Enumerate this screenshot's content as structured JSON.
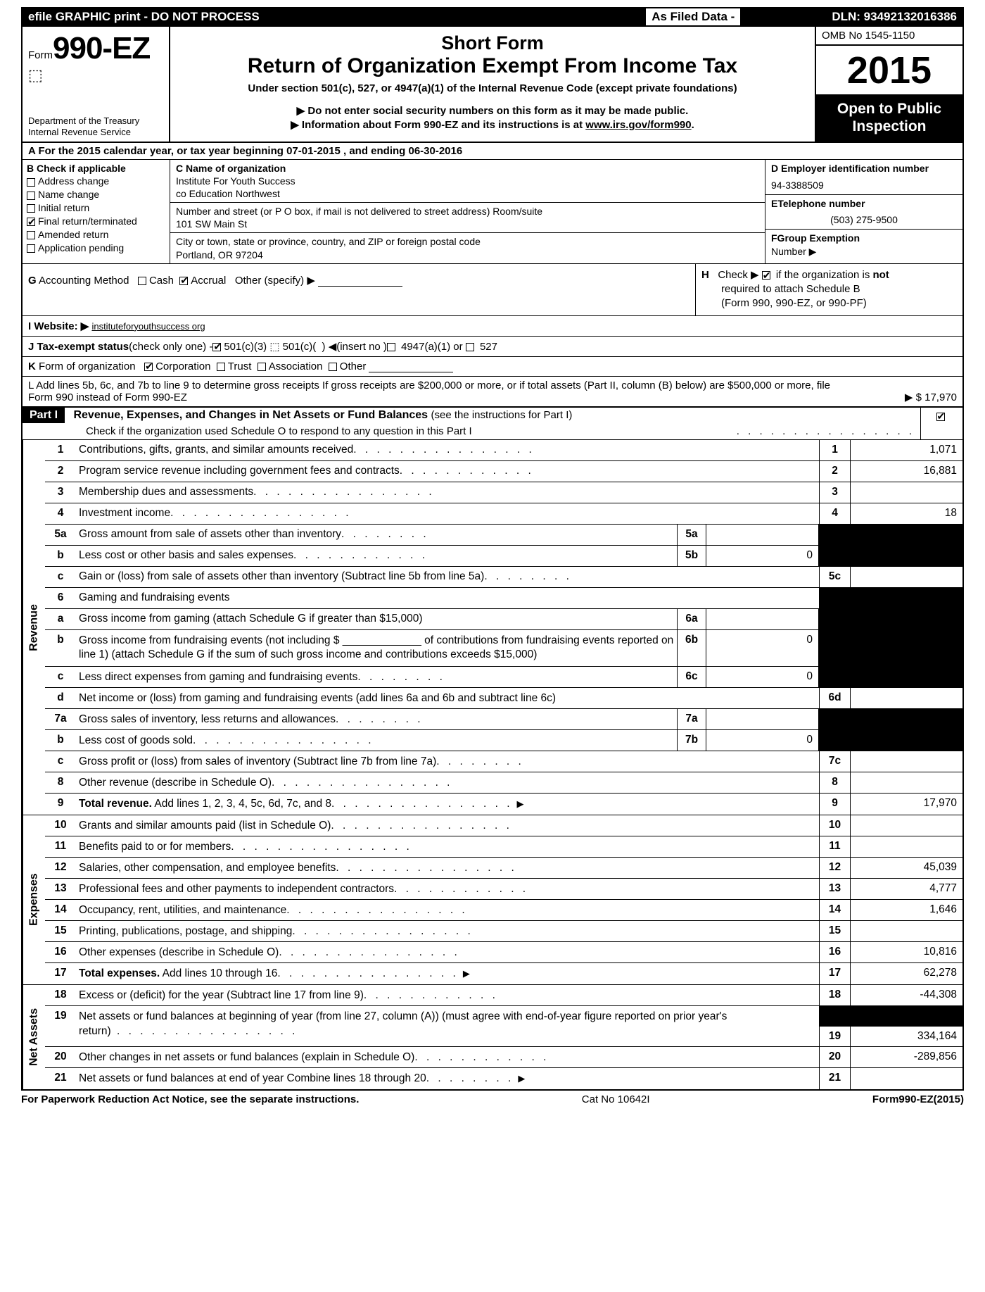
{
  "topbar": {
    "left": "efile GRAPHIC print - DO NOT PROCESS",
    "mid": "As Filed Data -",
    "dln": "DLN: 93492132016386"
  },
  "header": {
    "form_prefix": "Form",
    "form_number": "990-EZ",
    "dept1": "Department of the Treasury",
    "dept2": "Internal Revenue Service",
    "title1": "Short Form",
    "title2": "Return of Organization Exempt From Income Tax",
    "sub": "Under section 501(c), 527, or 4947(a)(1) of the Internal Revenue Code (except private foundations)",
    "note1": "▶ Do not enter social security numbers on this form as it may be made public.",
    "note2": "▶ Information about Form 990-EZ and its instructions is at www.irs.gov/form990.",
    "omb": "OMB No 1545-1150",
    "year": "2015",
    "public1": "Open to Public",
    "public2": "Inspection"
  },
  "rowA": "A  For the 2015 calendar year, or tax year beginning 07-01-2015             , and ending 06-30-2016",
  "colB": {
    "head": "B  Check if applicable",
    "items": [
      "Address change",
      "Name change",
      "Initial return",
      "Final return/terminated",
      "Amended return",
      "Application pending"
    ],
    "checked_idx": 3
  },
  "colC": {
    "label1": "C Name of organization",
    "name1": "Institute For Youth Success",
    "name2": "co Education Northwest",
    "label2": "Number and street (or P O box, if mail is not delivered to street address) Room/suite",
    "street": "101 SW Main St",
    "label3": "City or town, state or province, country, and ZIP or foreign postal code",
    "city": "Portland, OR  97204"
  },
  "colDEF": {
    "d_label": "D Employer identification number",
    "d_val": "94-3388509",
    "e_label": "ETelephone number",
    "e_val": "(503) 275-9500",
    "f_label": "FGroup Exemption",
    "f_label2": "Number    ▶"
  },
  "rowG": {
    "g": "G Accounting Method   ☐Cash  ☑Accrual   Other (specify) ▶",
    "h1": "H   Check ▶ ☑ if the organization is not",
    "h2": "required to attach Schedule B",
    "h3": "(Form 990, 990-EZ, or 990-PF)"
  },
  "rowI": {
    "label": "I Website: ▶",
    "url": "instituteforyouthsuccess org"
  },
  "rowJ": "J Tax-exempt status(check only one) -☑501(c)(3) ⬚ 501(c)(  ) ◀(insert no )☐ 4947(a)(1) or ☐ 527",
  "rowK": "K Form of organization   ☑Corporation  ☐Trust  ☐Association  ☐Other",
  "rowL": {
    "text": "L Add lines 5b, 6c, and 7b to line 9 to determine gross receipts  If gross receipts are $200,000 or more, or if total assets (Part II, column (B) below) are $500,000 or more, file Form 990 instead of Form 990-EZ",
    "val": "▶ $ 17,970"
  },
  "partI": {
    "label": "Part I",
    "title": "Revenue, Expenses, and Changes in Net Assets or Fund Balances",
    "title_paren": "(see the instructions for Part I)",
    "check_line": "Check if the organization used Schedule O to respond to any question in this Part I"
  },
  "revenue_lines": [
    {
      "n": "1",
      "desc": "Contributions, gifts, grants, and similar amounts received",
      "box": "1",
      "val": "1,071",
      "dots": "dots"
    },
    {
      "n": "2",
      "desc": "Program service revenue including government fees and contracts",
      "box": "2",
      "val": "16,881",
      "dots": "dots-med"
    },
    {
      "n": "3",
      "desc": "Membership dues and assessments",
      "box": "3",
      "val": "",
      "dots": "dots"
    },
    {
      "n": "4",
      "desc": "Investment income",
      "box": "4",
      "val": "18",
      "dots": "dots"
    },
    {
      "n": "5a",
      "desc": "Gross amount from sale of assets other than inventory",
      "midn": "5a",
      "midv": "",
      "box": "",
      "val": "",
      "dots": "dots-short",
      "shade": true
    },
    {
      "n": "b",
      "desc": "Less  cost or other basis and sales expenses",
      "midn": "5b",
      "midv": "0",
      "box": "",
      "val": "",
      "dots": "dots-med",
      "shade": true
    },
    {
      "n": "c",
      "desc": "Gain or (loss) from sale of assets other than inventory (Subtract line 5b from line 5a)",
      "box": "5c",
      "val": "",
      "dots": "dots-short"
    },
    {
      "n": "6",
      "desc": "Gaming and fundraising events",
      "box": "",
      "val": "",
      "shade": true,
      "nodesc_right": true
    },
    {
      "n": "a",
      "desc": "Gross income from gaming (attach Schedule G if greater than $15,000)",
      "midn": "6a",
      "midv": "",
      "box": "",
      "val": "",
      "shade": true,
      "dots": ""
    },
    {
      "n": "b",
      "desc_multi": "Gross income from fundraising events (not including $ _____________ of contributions from fundraising events reported on line 1) (attach Schedule G if the sum of such gross income and contributions exceeds $15,000)",
      "midn": "6b",
      "midv": "0",
      "box": "",
      "val": "",
      "shade": true
    },
    {
      "n": "c",
      "desc": "Less  direct expenses from gaming and fundraising events",
      "midn": "6c",
      "midv": "0",
      "box": "",
      "val": "",
      "dots": "dots-short",
      "shade": true
    },
    {
      "n": "d",
      "desc": "Net income or (loss) from gaming and fundraising events (add lines 6a and 6b and subtract line 6c)",
      "box": "6d",
      "val": ""
    },
    {
      "n": "7a",
      "desc": "Gross sales of inventory, less returns and allowances",
      "midn": "7a",
      "midv": "",
      "box": "",
      "val": "",
      "dots": "dots-short",
      "shade": true
    },
    {
      "n": "b",
      "desc": "Less  cost of goods sold",
      "midn": "7b",
      "midv": "0",
      "box": "",
      "val": "",
      "dots": "dots",
      "shade": true
    },
    {
      "n": "c",
      "desc": "Gross profit or (loss) from sales of inventory (Subtract line 7b from line 7a)",
      "box": "7c",
      "val": "",
      "dots": "dots-short"
    },
    {
      "n": "8",
      "desc": "Other revenue (describe in Schedule O)",
      "box": "8",
      "val": "",
      "dots": "dots"
    },
    {
      "n": "9",
      "desc": "Total revenue. Add lines 1, 2, 3, 4, 5c, 6d, 7c, and 8",
      "box": "9",
      "val": "17,970",
      "dots": "dots",
      "bold": true,
      "arrow": true
    }
  ],
  "expense_lines": [
    {
      "n": "10",
      "desc": "Grants and similar amounts paid (list in Schedule O)",
      "box": "10",
      "val": "",
      "dots": "dots"
    },
    {
      "n": "11",
      "desc": "Benefits paid to or for members",
      "box": "11",
      "val": "",
      "dots": "dots"
    },
    {
      "n": "12",
      "desc": "Salaries, other compensation, and employee benefits",
      "box": "12",
      "val": "45,039",
      "dots": "dots"
    },
    {
      "n": "13",
      "desc": "Professional fees and other payments to independent contractors",
      "box": "13",
      "val": "4,777",
      "dots": "dots-med"
    },
    {
      "n": "14",
      "desc": "Occupancy, rent, utilities, and maintenance",
      "box": "14",
      "val": "1,646",
      "dots": "dots"
    },
    {
      "n": "15",
      "desc": "Printing, publications, postage, and shipping",
      "box": "15",
      "val": "",
      "dots": "dots"
    },
    {
      "n": "16",
      "desc": "Other expenses (describe in Schedule O)",
      "box": "16",
      "val": "10,816",
      "dots": "dots"
    },
    {
      "n": "17",
      "desc": "Total expenses. Add lines 10 through 16",
      "box": "17",
      "val": "62,278",
      "dots": "dots",
      "bold": true,
      "arrow": true
    }
  ],
  "netasset_lines": [
    {
      "n": "18",
      "desc": "Excess or (deficit) for the year (Subtract line 17 from line 9)",
      "box": "18",
      "val": "-44,308",
      "dots": "dots-med"
    },
    {
      "n": "19",
      "desc_multi": "Net assets or fund balances at beginning of year (from line 27, column (A)) (must agree with end-of-year figure reported on prior year's return)",
      "box": "19",
      "val": "334,164",
      "dots": "dots",
      "shade_top": true
    },
    {
      "n": "20",
      "desc": "Other changes in net assets or fund balances (explain in Schedule O)",
      "box": "20",
      "val": "-289,856",
      "dots": "dots-med"
    },
    {
      "n": "21",
      "desc": "Net assets or fund balances at end of year  Combine lines 18 through 20",
      "box": "21",
      "val": "",
      "dots": "dots-short",
      "arrow": true
    }
  ],
  "footer": {
    "left": "For Paperwork Reduction Act Notice, see the separate instructions.",
    "mid": "Cat No 10642I",
    "right": "Form990-EZ(2015)"
  }
}
